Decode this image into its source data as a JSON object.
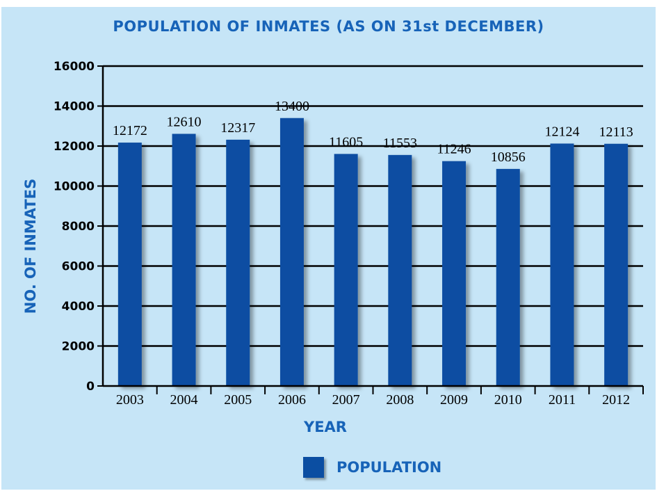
{
  "chart_data": {
    "type": "bar",
    "title": "POPULATION OF INMATES (AS ON 31st DECEMBER)",
    "xlabel": "YEAR",
    "ylabel": "NO. OF INMATES",
    "categories": [
      "2003",
      "2004",
      "2005",
      "2006",
      "2007",
      "2008",
      "2009",
      "2010",
      "2011",
      "2012"
    ],
    "series": [
      {
        "name": "POPULATION",
        "values": [
          12172,
          12610,
          12317,
          13400,
          11605,
          11553,
          11246,
          10856,
          12124,
          12113
        ]
      }
    ],
    "ylim": [
      0,
      16000
    ],
    "yticks": [
      "0",
      "2000",
      "4000",
      "6000",
      "8000",
      "10000",
      "12000",
      "14000",
      "16000"
    ],
    "grid": true,
    "legend_position": "bottom-center",
    "colors": {
      "bar": "#0b4ea2",
      "background": "#c6e5f7",
      "text_accent": "#1763b8"
    }
  }
}
